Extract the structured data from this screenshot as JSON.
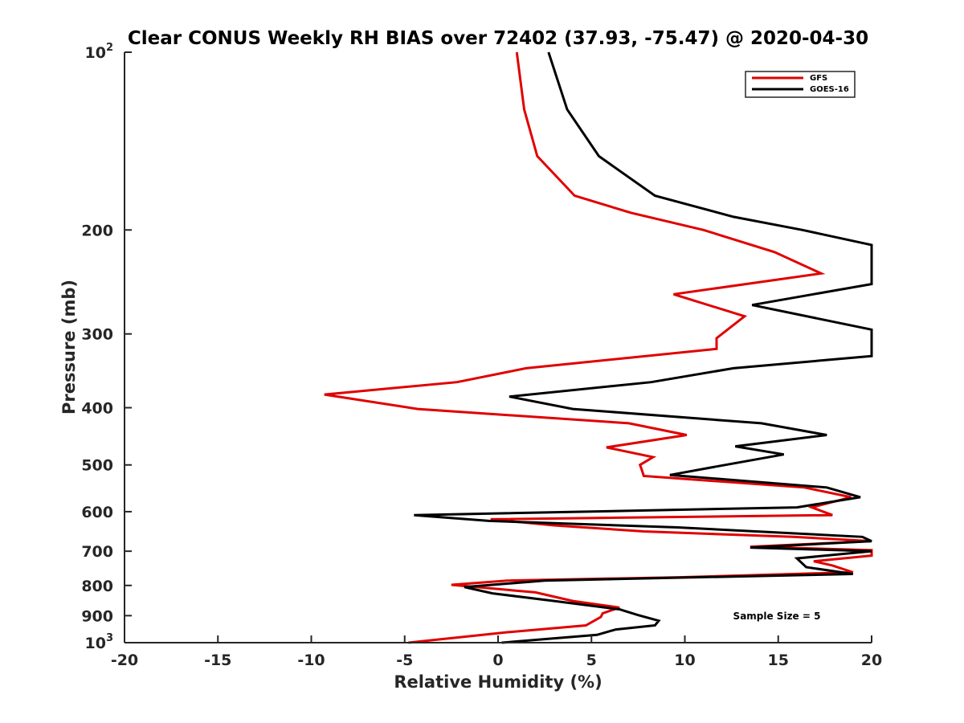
{
  "chart_data": {
    "type": "line",
    "title": "Clear CONUS Weekly RH BIAS over 72402 (37.93, -75.47) @ 2020-04-30",
    "xlabel": "Relative Humidity (%)",
    "ylabel": "Pressure (mb)",
    "xlim": [
      -20,
      20
    ],
    "ylim": [
      100,
      1000
    ],
    "yscale": "log",
    "y_reversed": true,
    "xticks": [
      "-20",
      "-15",
      "-10",
      "-5",
      "0",
      "5",
      "10",
      "15",
      "20"
    ],
    "yticks": [
      {
        "value": 100,
        "base": "10",
        "exp": "2"
      },
      {
        "value": 200,
        "base": "200",
        "exp": ""
      },
      {
        "value": 300,
        "base": "300",
        "exp": ""
      },
      {
        "value": 400,
        "base": "400",
        "exp": ""
      },
      {
        "value": 500,
        "base": "500",
        "exp": ""
      },
      {
        "value": 600,
        "base": "600",
        "exp": ""
      },
      {
        "value": 700,
        "base": "700",
        "exp": ""
      },
      {
        "value": 800,
        "base": "800",
        "exp": ""
      },
      {
        "value": 900,
        "base": "900",
        "exp": ""
      },
      {
        "value": 1000,
        "base": "10",
        "exp": "3"
      }
    ],
    "legend_position": "top-right",
    "annotation": "Sample Size = 5",
    "series": [
      {
        "name": "GFS",
        "color": "#e00000",
        "points": [
          [
            1.0,
            100
          ],
          [
            1.4,
            125
          ],
          [
            2.1,
            150
          ],
          [
            4.1,
            175
          ],
          [
            7.1,
            187
          ],
          [
            11,
            200
          ],
          [
            14.8,
            218
          ],
          [
            17.3,
            237
          ],
          [
            9.4,
            257
          ],
          [
            13.2,
            280
          ],
          [
            11.7,
            305
          ],
          [
            11.7,
            318
          ],
          [
            1.5,
            343
          ],
          [
            -2.2,
            362
          ],
          [
            -9.3,
            380
          ],
          [
            -4.3,
            402
          ],
          [
            7.0,
            425
          ],
          [
            10.1,
            445
          ],
          [
            5.8,
            467
          ],
          [
            8.3,
            485
          ],
          [
            7.6,
            500
          ],
          [
            7.7,
            510
          ],
          [
            7.8,
            522
          ],
          [
            16.4,
            546
          ],
          [
            18.9,
            567
          ],
          [
            16.8,
            590
          ],
          [
            17.9,
            608
          ],
          [
            -0.4,
            618
          ],
          [
            3.0,
            633
          ],
          [
            7.8,
            648
          ],
          [
            15.8,
            662
          ],
          [
            20.0,
            673
          ],
          [
            13.5,
            688
          ],
          [
            20.0,
            697
          ],
          [
            20.0,
            712
          ],
          [
            16.9,
            728
          ],
          [
            17.9,
            740
          ],
          [
            19.0,
            760
          ],
          [
            9.7,
            775
          ],
          [
            0.5,
            785
          ],
          [
            -2.5,
            798
          ],
          [
            2.0,
            822
          ],
          [
            4.0,
            850
          ],
          [
            6.5,
            872
          ],
          [
            5.6,
            892
          ],
          [
            5.5,
            905
          ],
          [
            4.7,
            935
          ],
          [
            0.5,
            960
          ],
          [
            -4.8,
            1000
          ]
        ]
      },
      {
        "name": "GOES-16",
        "color": "#000000",
        "points": [
          [
            2.7,
            100
          ],
          [
            3.7,
            125
          ],
          [
            5.4,
            150
          ],
          [
            8.4,
            175
          ],
          [
            12.6,
            190
          ],
          [
            16.3,
            200
          ],
          [
            20.0,
            212
          ],
          [
            20.0,
            247
          ],
          [
            13.6,
            268
          ],
          [
            20.0,
            295
          ],
          [
            20.0,
            327
          ],
          [
            12.6,
            343
          ],
          [
            8.2,
            362
          ],
          [
            0.6,
            383
          ],
          [
            4.0,
            402
          ],
          [
            14.1,
            425
          ],
          [
            17.6,
            445
          ],
          [
            12.7,
            465
          ],
          [
            15.3,
            480
          ],
          [
            11.7,
            503
          ],
          [
            9.2,
            520
          ],
          [
            17.6,
            546
          ],
          [
            19.4,
            567
          ],
          [
            16.0,
            590
          ],
          [
            -4.5,
            608
          ],
          [
            -0.5,
            622
          ],
          [
            9.6,
            638
          ],
          [
            19.5,
            662
          ],
          [
            20.0,
            673
          ],
          [
            13.5,
            690
          ],
          [
            20.0,
            700
          ],
          [
            16.0,
            720
          ],
          [
            16.5,
            745
          ],
          [
            19.0,
            765
          ],
          [
            2.5,
            785
          ],
          [
            -1.8,
            805
          ],
          [
            -0.3,
            825
          ],
          [
            3.0,
            850
          ],
          [
            6.5,
            878
          ],
          [
            7.5,
            898
          ],
          [
            8.6,
            918
          ],
          [
            8.4,
            935
          ],
          [
            6.3,
            950
          ],
          [
            5.3,
            970
          ],
          [
            0.2,
            1000
          ]
        ]
      }
    ]
  }
}
